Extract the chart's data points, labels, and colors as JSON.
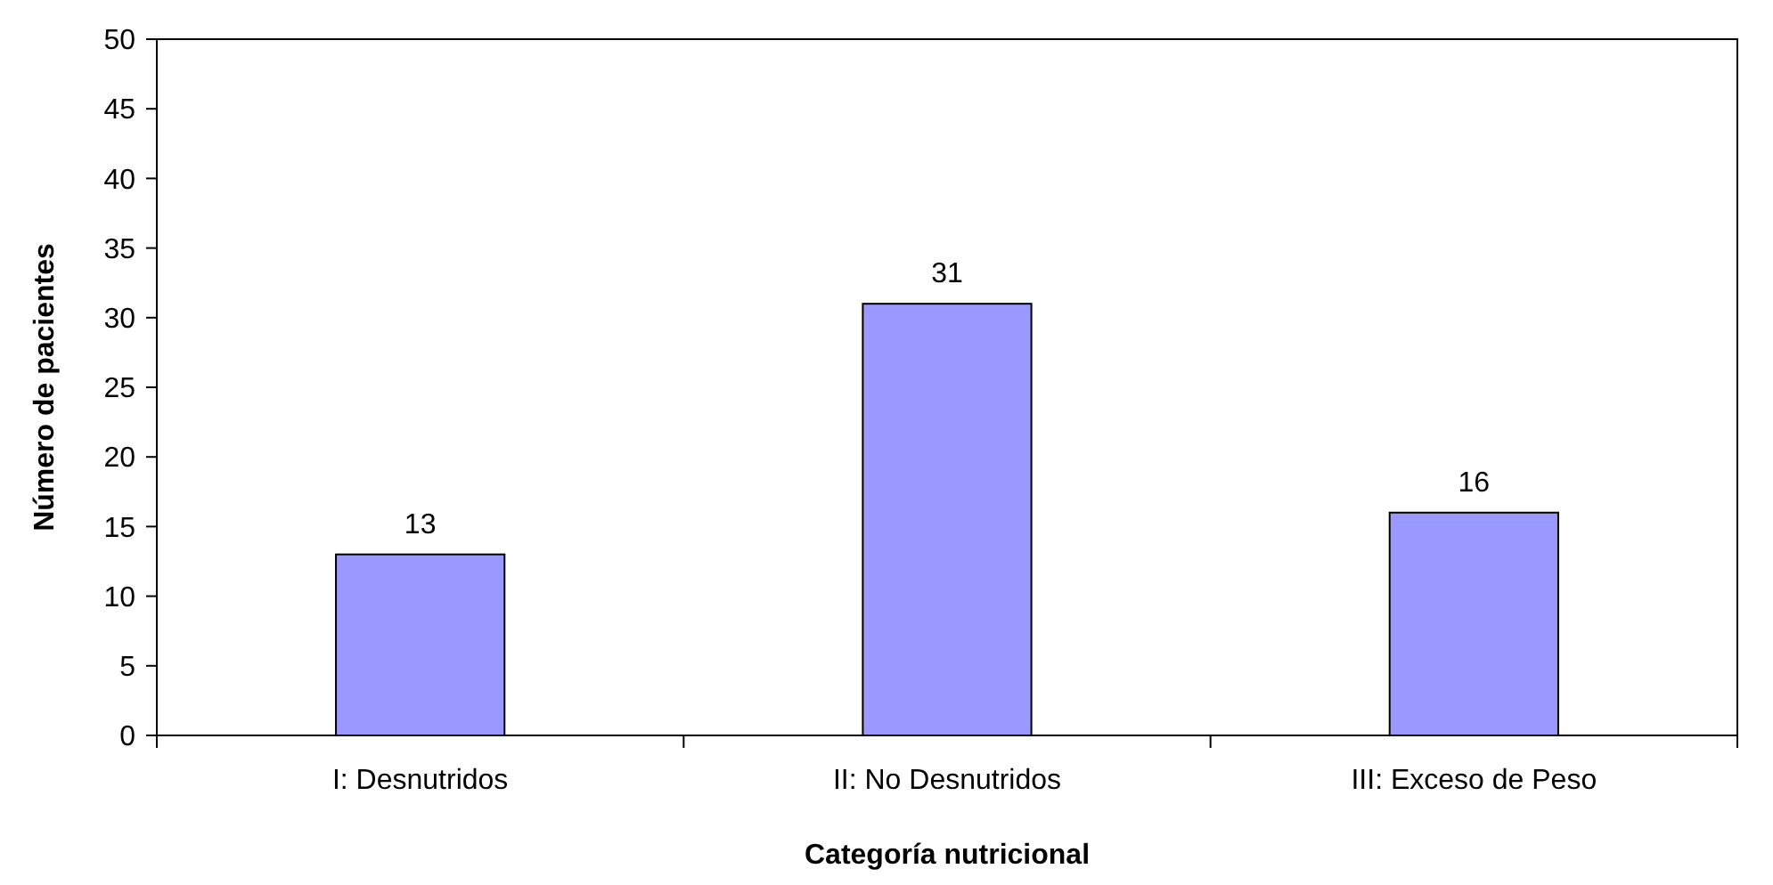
{
  "chart_data": {
    "type": "bar",
    "xlabel": "Categoría nutricional",
    "ylabel": "Número de pacientes",
    "categories": [
      "I: Desnutridos",
      "II: No Desnutridos",
      "III: Exceso de Peso"
    ],
    "values": [
      13,
      31,
      16
    ],
    "color": "#9999ff",
    "ylim": [
      0,
      50
    ],
    "yticks": [
      0,
      5,
      10,
      15,
      20,
      25,
      30,
      35,
      40,
      45,
      50
    ],
    "data_labels": true
  }
}
